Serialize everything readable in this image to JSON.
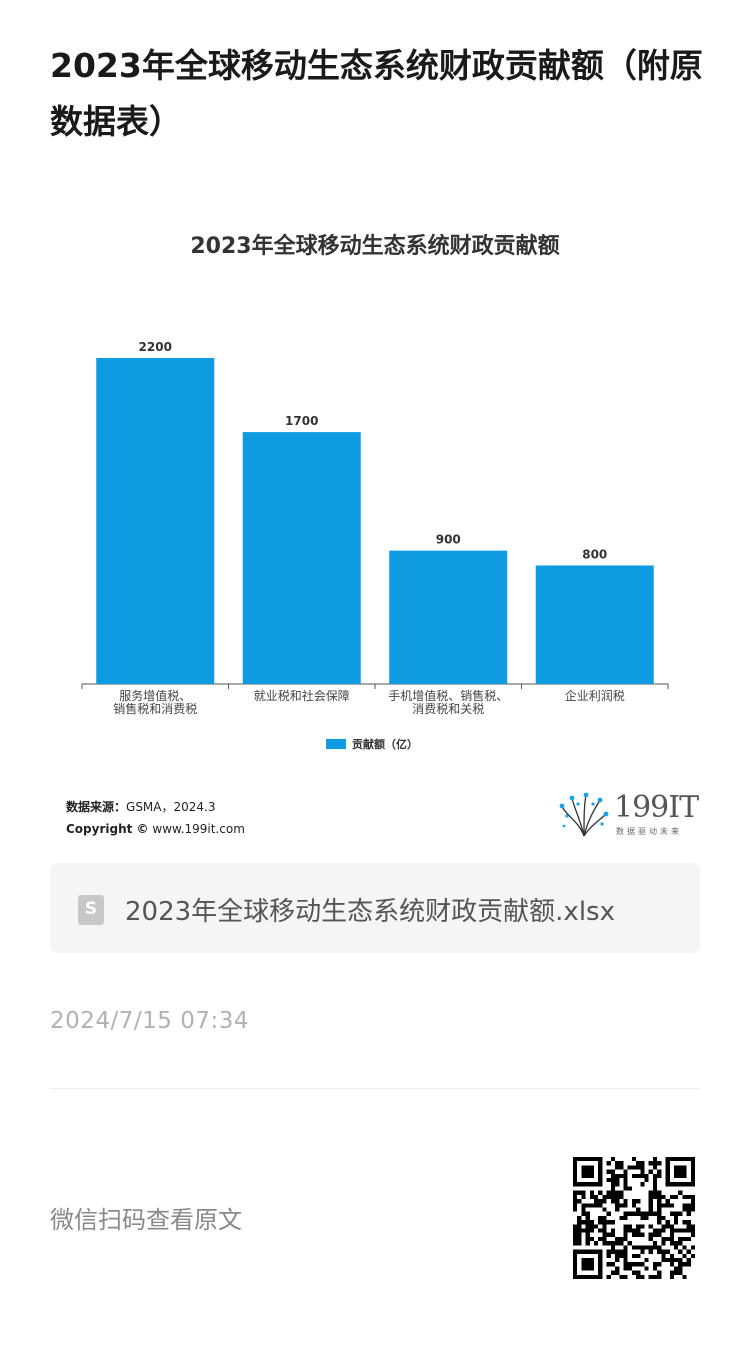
{
  "article": {
    "title": "2023年全球移动生态系统财政贡献额（附原数据表）",
    "timestamp": "2024/7/15 07:34",
    "read_original": "微信扫码查看原文"
  },
  "attachment": {
    "icon": "spreadsheet-file-icon",
    "icon_glyph": "S",
    "filename": "2023年全球移动生态系统财政贡献额.xlsx"
  },
  "source": {
    "label": "数据来源：",
    "value": "GSMA，2024.3",
    "copyright_label": "Copyright ©",
    "copyright_value": "www.199it.com"
  },
  "logo": {
    "text": "199IT",
    "subtitle": "数据驱动未来"
  },
  "colors": {
    "bar": "#0e9be2",
    "axis": "#555555"
  },
  "chart_data": {
    "type": "bar",
    "title": "2023年全球移动生态系统财政贡献额",
    "categories": [
      [
        "服务增值税、",
        "销售税和消费税"
      ],
      [
        "就业税和社会保障"
      ],
      [
        "手机增值税、销售税、",
        "消费税和关税"
      ],
      [
        "企业利润税"
      ]
    ],
    "series": [
      {
        "name": "贡献额（亿）",
        "values": [
          2200,
          1700,
          900,
          800
        ]
      }
    ],
    "ylim": [
      0,
      2200
    ],
    "grid": false,
    "legend_position": "bottom"
  }
}
